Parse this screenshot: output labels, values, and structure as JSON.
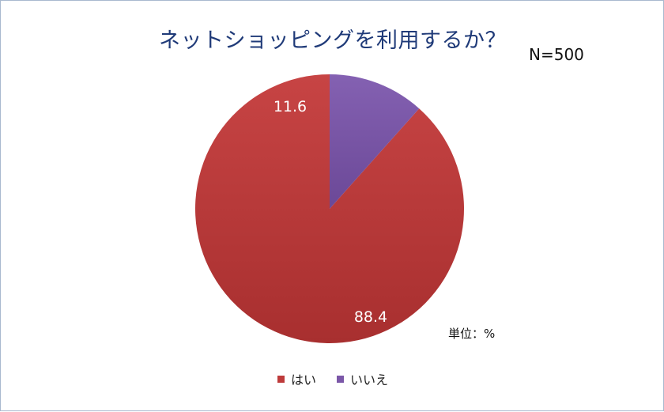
{
  "chart_data": {
    "type": "pie",
    "title": "ネットショッピングを利用するか？",
    "annotation_n": "N=500",
    "unit_label": "単位：%",
    "slices": [
      {
        "label": "はい",
        "value": 88.4,
        "value_label": "88.4",
        "color": "#be3b3b"
      },
      {
        "label": "いいえ",
        "value": 11.6,
        "value_label": "11.6",
        "color": "#7b57a8"
      }
    ],
    "legend_position": "bottom",
    "start_angle": "12 o'clock",
    "direction": "counterclockwise"
  }
}
